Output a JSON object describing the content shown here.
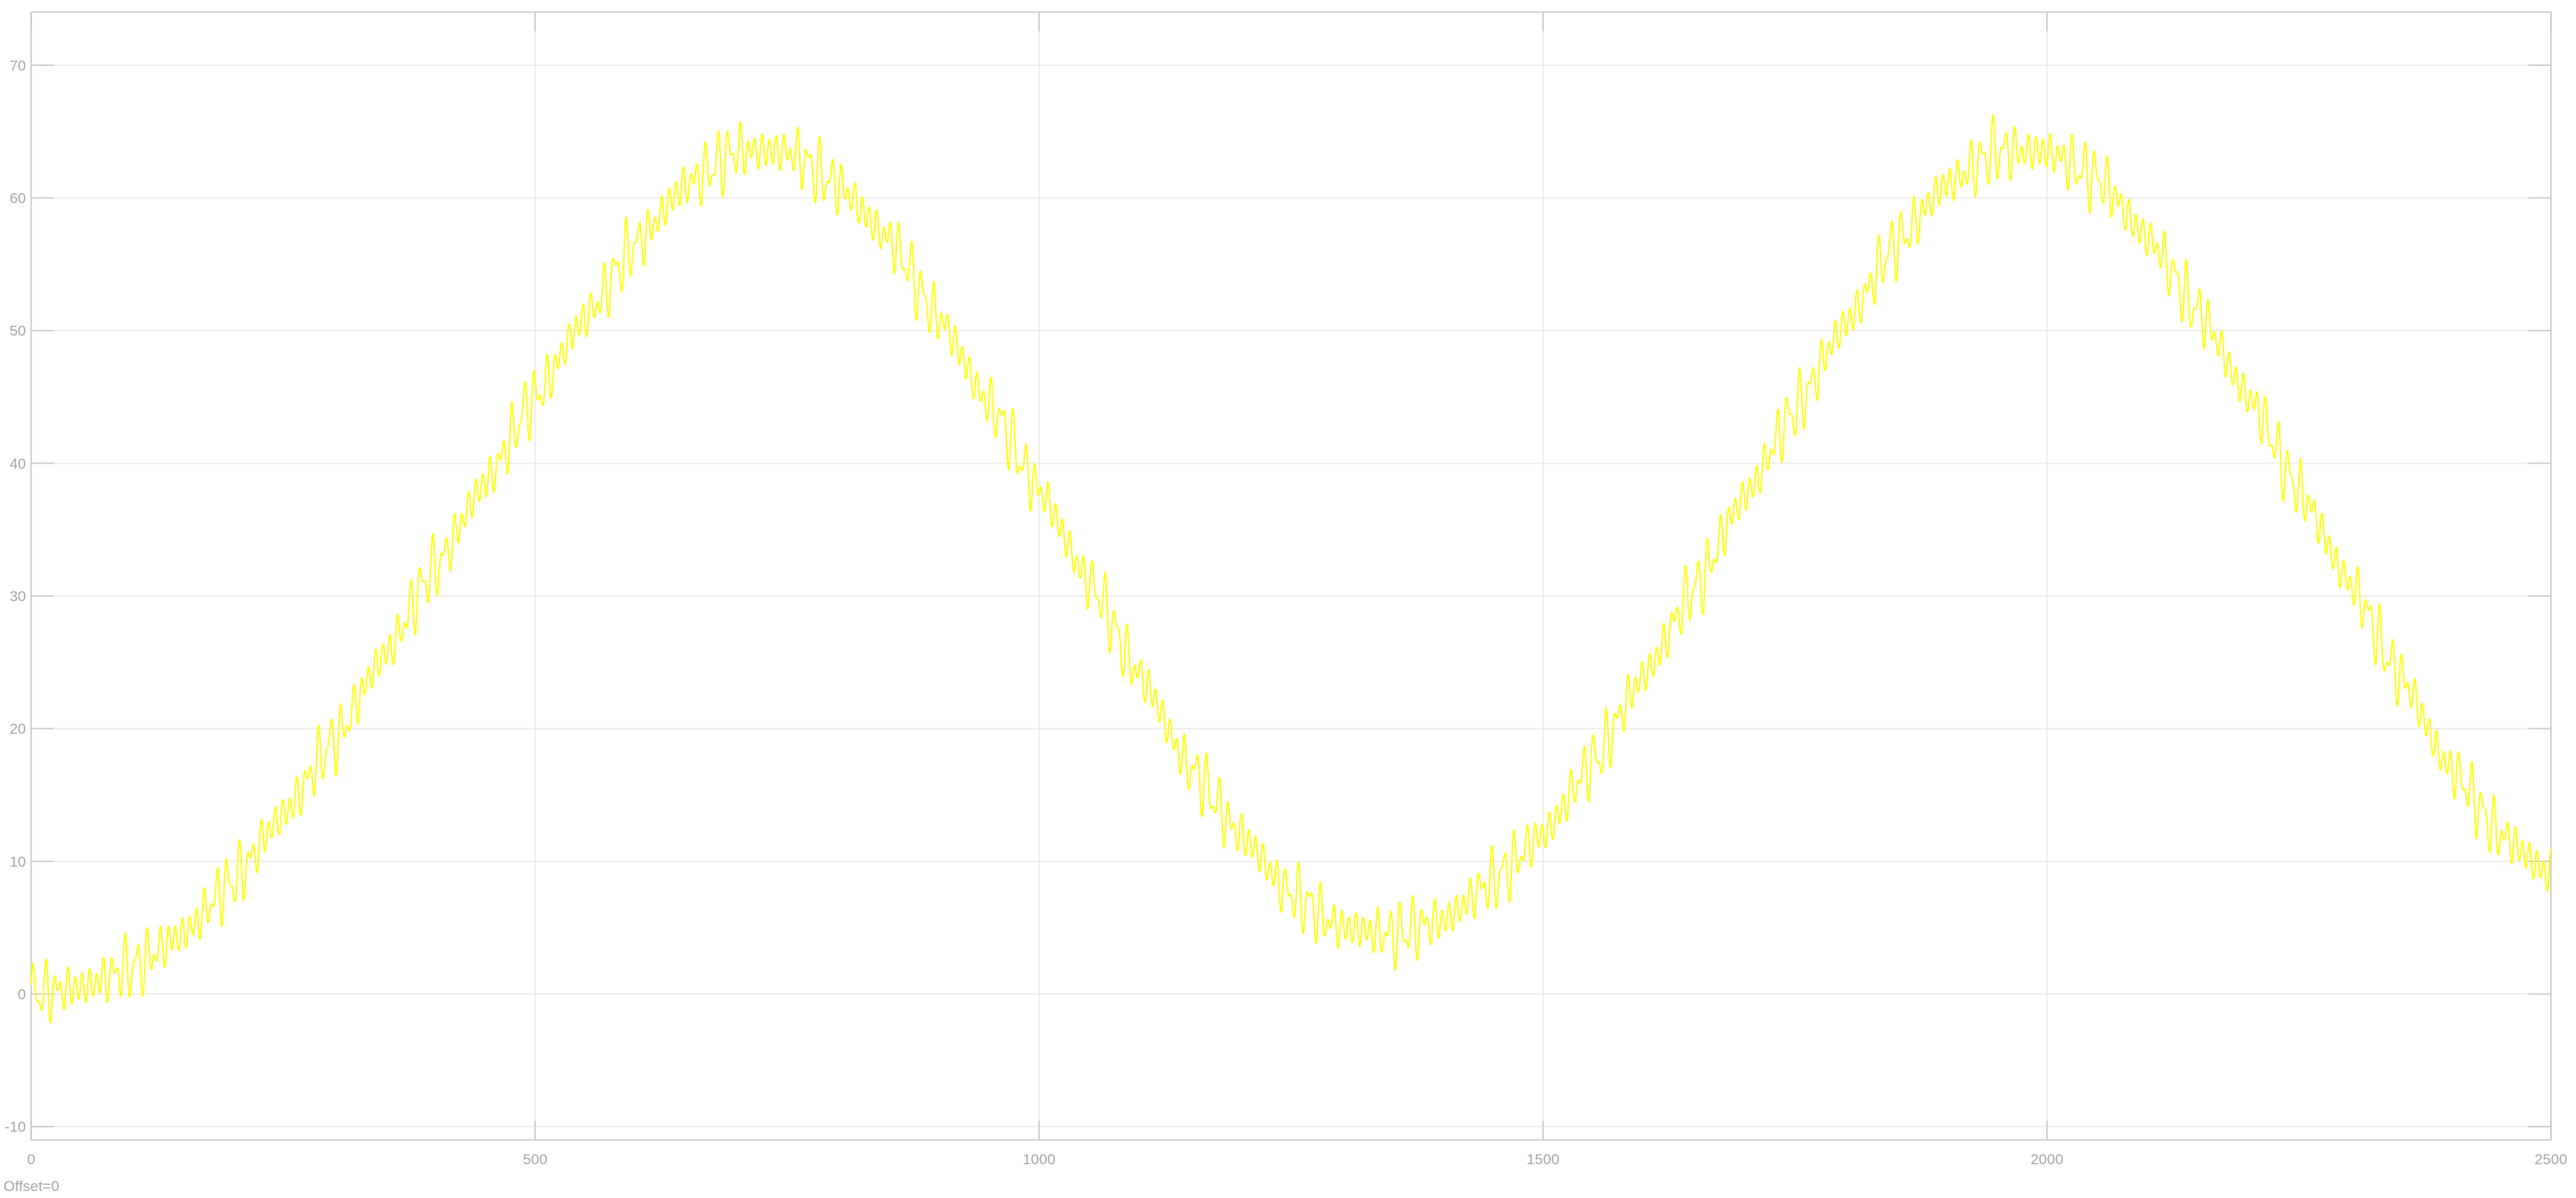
{
  "scope": {
    "offset_label": "Offset=0"
  },
  "colors": {
    "background": "#ffffff",
    "grid": "#e6e6e6",
    "axes": "#c8c8c8",
    "tick_text": "#a6a6a6",
    "signal": "#ffff00"
  },
  "chart_data": {
    "type": "line",
    "title": "",
    "xlabel": "",
    "ylabel": "",
    "xlim": [
      0,
      2500
    ],
    "ylim": [
      -11,
      74
    ],
    "grid": true,
    "xticks": [
      0,
      500,
      1000,
      1500,
      2000,
      2500
    ],
    "xtick_labels": [
      "0",
      "500",
      "1000",
      "1500",
      "2000",
      "2500"
    ],
    "yticks": [
      -10,
      0,
      10,
      20,
      30,
      40,
      50,
      60,
      70
    ],
    "ytick_labels": [
      "-10",
      "0",
      "10",
      "20",
      "30",
      "40",
      "50",
      "60",
      "70"
    ],
    "series": [
      {
        "color": "#ffff00",
        "x": [
          0,
          50,
          100,
          150,
          200,
          250,
          300,
          350,
          400,
          450,
          500,
          550,
          600,
          650,
          700,
          750,
          800,
          850,
          900,
          950,
          1000,
          1050,
          1100,
          1150,
          1200,
          1250,
          1300,
          1350,
          1400,
          1450,
          1500,
          1550,
          1600,
          1650,
          1700,
          1750,
          1800,
          1850,
          1900,
          1950,
          2000,
          2050,
          2100,
          2150,
          2200,
          2250,
          2300,
          2350,
          2400,
          2450,
          2500
        ],
        "y": [
          0,
          0.5,
          2,
          4.5,
          8.5,
          13.5,
          19,
          25.5,
          32,
          38.5,
          45,
          51,
          56.5,
          61,
          63.5,
          63.5,
          61,
          57,
          51,
          44.5,
          38,
          31,
          24,
          17,
          12,
          7.5,
          5,
          4.5,
          5.5,
          8.5,
          12,
          17.5,
          24,
          30.5,
          37.5,
          44,
          50.5,
          56.5,
          61,
          63.5,
          63.5,
          61.5,
          57,
          51.5,
          45,
          38,
          31,
          24,
          17,
          12,
          9
        ],
        "ripple_amplitude": 1.8
      }
    ]
  }
}
